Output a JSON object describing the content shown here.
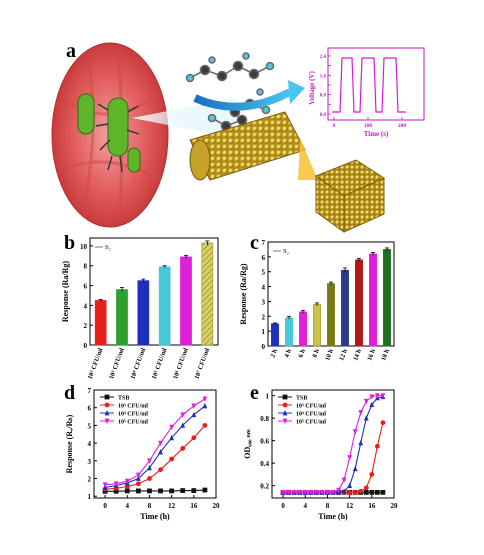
{
  "panels": {
    "a": {
      "letter": "a",
      "inset": {
        "ylabel": "Voltage (V)",
        "xlabel": "Time (s)",
        "yticks": [
          "0.0",
          "0.4",
          "0.8",
          "1.2",
          "1.6",
          "2.0",
          "2.4"
        ],
        "xticks": [
          "0",
          "100",
          "200"
        ]
      }
    },
    "b": {
      "letter": "b"
    },
    "c": {
      "letter": "c"
    },
    "d": {
      "letter": "d"
    },
    "e": {
      "letter": "e"
    }
  },
  "colors": {
    "red": "#e8201c",
    "green": "#2ea02e",
    "blue": "#1f2fbd",
    "cyan": "#45c8d8",
    "magenta": "#e020d8",
    "olive": "#c9c34a",
    "black": "#111111",
    "darkred": "#b01818",
    "yellowgreen": "#9fc03a",
    "olivedark": "#7a7a15",
    "navy": "#263e8c",
    "darkgreen": "#1e6e22"
  },
  "chart_data": [
    {
      "id": "b",
      "type": "bar",
      "legend": "S₂",
      "ylabel": "Response (Ra/Rg)",
      "ylim": [
        0,
        10.8
      ],
      "yticks": [
        0,
        2,
        4,
        6,
        8,
        10
      ],
      "categories": [
        "10² CFU/ml",
        "10³ CFU/ml",
        "10⁴ CFU/ml",
        "10⁵ CFU/ml",
        "10⁶ CFU/ml",
        "10⁷ CFU/ml"
      ],
      "values": [
        4.5,
        5.6,
        6.5,
        7.9,
        8.9,
        10.3
      ],
      "errors": [
        0.1,
        0.2,
        0.15,
        0.1,
        0.15,
        0.2
      ],
      "bar_colors": [
        "red",
        "green",
        "blue",
        "cyan",
        "magenta",
        "olive"
      ]
    },
    {
      "id": "c",
      "type": "bar",
      "legend": "S₂",
      "ylabel": "Response (Ra/Rg)",
      "ylim": [
        0,
        7
      ],
      "yticks": [
        0,
        1,
        2,
        3,
        4,
        5,
        6,
        7
      ],
      "categories": [
        "2 h",
        "4 h",
        "6 h",
        "8 h",
        "10 h",
        "12 h",
        "14 h",
        "16 h",
        "18 h"
      ],
      "values": [
        1.5,
        1.9,
        2.3,
        2.8,
        4.2,
        5.1,
        5.8,
        6.2,
        6.5
      ],
      "errors": [
        0.05,
        0.1,
        0.1,
        0.1,
        0.1,
        0.15,
        0.1,
        0.1,
        0.1
      ],
      "bar_colors": [
        "blue",
        "cyan",
        "magenta",
        "olive",
        "olivedark",
        "navy",
        "darkred",
        "magenta",
        "darkgreen"
      ]
    },
    {
      "id": "d",
      "type": "line",
      "xlabel": "Time (h)",
      "ylabel": "Response (Rₐ/Rₕ)",
      "xlim": [
        -2,
        20
      ],
      "ylim": [
        0.9,
        7
      ],
      "xticks": [
        0,
        4,
        8,
        12,
        16,
        20
      ],
      "yticks": [
        1,
        2,
        3,
        4,
        5,
        6,
        7
      ],
      "x": [
        0,
        2,
        4,
        6,
        8,
        10,
        12,
        14,
        16,
        18
      ],
      "series": [
        {
          "name": "TSB",
          "color": "black",
          "marker": "square",
          "values": [
            1.28,
            1.28,
            1.3,
            1.3,
            1.3,
            1.3,
            1.3,
            1.32,
            1.32,
            1.35
          ]
        },
        {
          "name": "10³ CFU/ml",
          "color": "red",
          "marker": "circle",
          "values": [
            1.4,
            1.45,
            1.55,
            1.7,
            2.0,
            2.5,
            3.1,
            3.7,
            4.3,
            5.0
          ]
        },
        {
          "name": "10⁴ CFU/ml",
          "color": "blue",
          "marker": "triangle",
          "values": [
            1.5,
            1.6,
            1.75,
            2.0,
            2.6,
            3.5,
            4.3,
            5.0,
            5.6,
            6.1
          ]
        },
        {
          "name": "10⁵ CFU/ml",
          "color": "magenta",
          "marker": "triangle-down",
          "values": [
            1.65,
            1.7,
            1.85,
            2.2,
            3.0,
            4.0,
            4.9,
            5.6,
            6.1,
            6.5
          ]
        }
      ]
    },
    {
      "id": "e",
      "type": "line",
      "xlabel": "Time (h)",
      "ylabel": "OD₆₀₀ ₙₘ",
      "xlim": [
        -2,
        20
      ],
      "ylim": [
        0.09,
        1.05
      ],
      "xticks": [
        0,
        4,
        8,
        12,
        16,
        20
      ],
      "yticks": [
        0.2,
        0.4,
        0.6,
        0.8,
        1.0
      ],
      "x": [
        0,
        1,
        2,
        3,
        4,
        5,
        6,
        7,
        8,
        9,
        10,
        11,
        12,
        13,
        14,
        15,
        16,
        17,
        18
      ],
      "series": [
        {
          "name": "TSB",
          "color": "black",
          "marker": "square",
          "values": [
            0.14,
            0.14,
            0.14,
            0.14,
            0.14,
            0.14,
            0.14,
            0.14,
            0.14,
            0.14,
            0.14,
            0.14,
            0.14,
            0.14,
            0.14,
            0.14,
            0.14,
            0.14,
            0.14
          ]
        },
        {
          "name": "10³ CFU/ml",
          "color": "red",
          "marker": "circle",
          "values": [
            0.14,
            0.14,
            0.14,
            0.14,
            0.14,
            0.14,
            0.14,
            0.14,
            0.14,
            0.14,
            0.14,
            0.14,
            0.14,
            0.14,
            0.15,
            0.18,
            0.3,
            0.55,
            0.76
          ]
        },
        {
          "name": "10⁴ CFU/ml",
          "color": "blue",
          "marker": "triangle",
          "values": [
            0.14,
            0.14,
            0.14,
            0.14,
            0.14,
            0.14,
            0.14,
            0.14,
            0.14,
            0.14,
            0.14,
            0.15,
            0.2,
            0.35,
            0.58,
            0.8,
            0.92,
            0.98,
            0.99
          ]
        },
        {
          "name": "10⁵ CFU/ml",
          "color": "magenta",
          "marker": "triangle-down",
          "values": [
            0.14,
            0.14,
            0.14,
            0.14,
            0.14,
            0.14,
            0.14,
            0.14,
            0.14,
            0.14,
            0.16,
            0.25,
            0.45,
            0.68,
            0.85,
            0.95,
            0.99,
            1.0,
            1.0
          ]
        }
      ]
    }
  ]
}
